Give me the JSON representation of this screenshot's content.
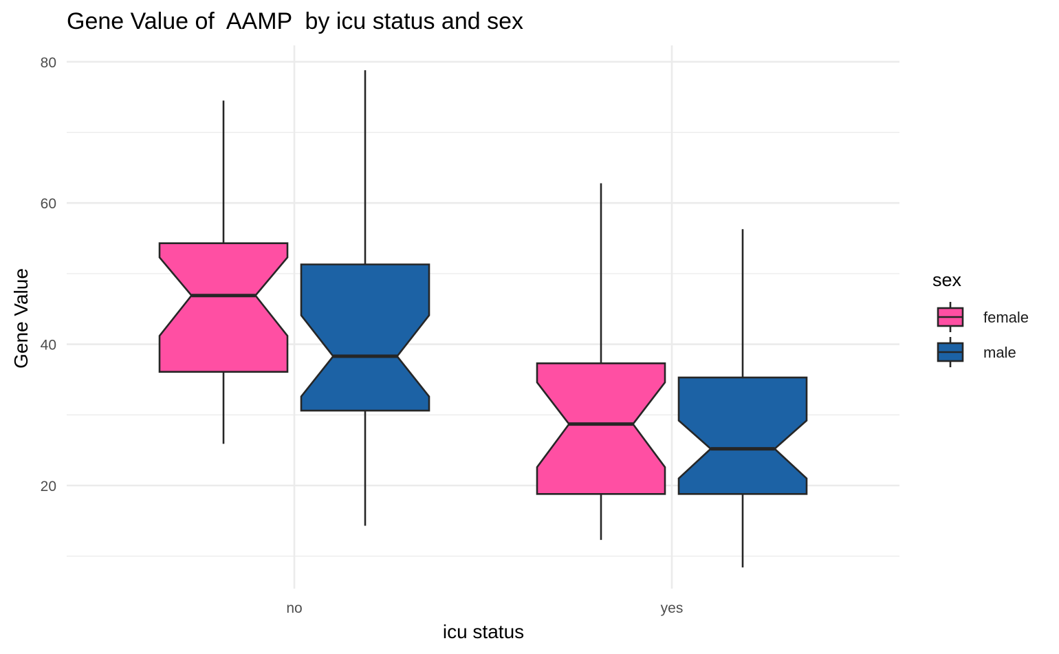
{
  "chart_data": {
    "type": "boxplot",
    "title": "Gene Value of  AAMP  by icu status and sex",
    "xlabel": "icu status",
    "ylabel": "Gene Value",
    "categories": [
      "no",
      "yes"
    ],
    "ylim": [
      5.5,
      82
    ],
    "yticks": [
      20,
      40,
      60,
      80
    ],
    "y_minor_ticks": [
      10,
      30,
      50,
      70
    ],
    "notched": true,
    "grid": true,
    "legend": {
      "title": "sex",
      "position": "right"
    },
    "series": [
      {
        "name": "female",
        "color": "#ff4fa3",
        "boxes": [
          {
            "category": "no",
            "whisker_low": 25.9,
            "q1": 36.1,
            "median": 46.9,
            "q3": 54.3,
            "whisker_high": 74.5,
            "notch_low": 41.2,
            "notch_high": 52.3
          },
          {
            "category": "yes",
            "whisker_low": 12.3,
            "q1": 18.8,
            "median": 28.7,
            "q3": 37.3,
            "whisker_high": 62.8,
            "notch_low": 22.6,
            "notch_high": 34.6
          }
        ]
      },
      {
        "name": "male",
        "color": "#1c62a5",
        "boxes": [
          {
            "category": "no",
            "whisker_low": 14.3,
            "q1": 30.6,
            "median": 38.3,
            "q3": 51.3,
            "whisker_high": 78.8,
            "notch_low": 32.6,
            "notch_high": 44.1
          },
          {
            "category": "yes",
            "whisker_low": 8.4,
            "q1": 18.8,
            "median": 25.2,
            "q3": 35.3,
            "whisker_high": 56.3,
            "notch_low": 21.0,
            "notch_high": 29.2
          }
        ]
      }
    ]
  }
}
